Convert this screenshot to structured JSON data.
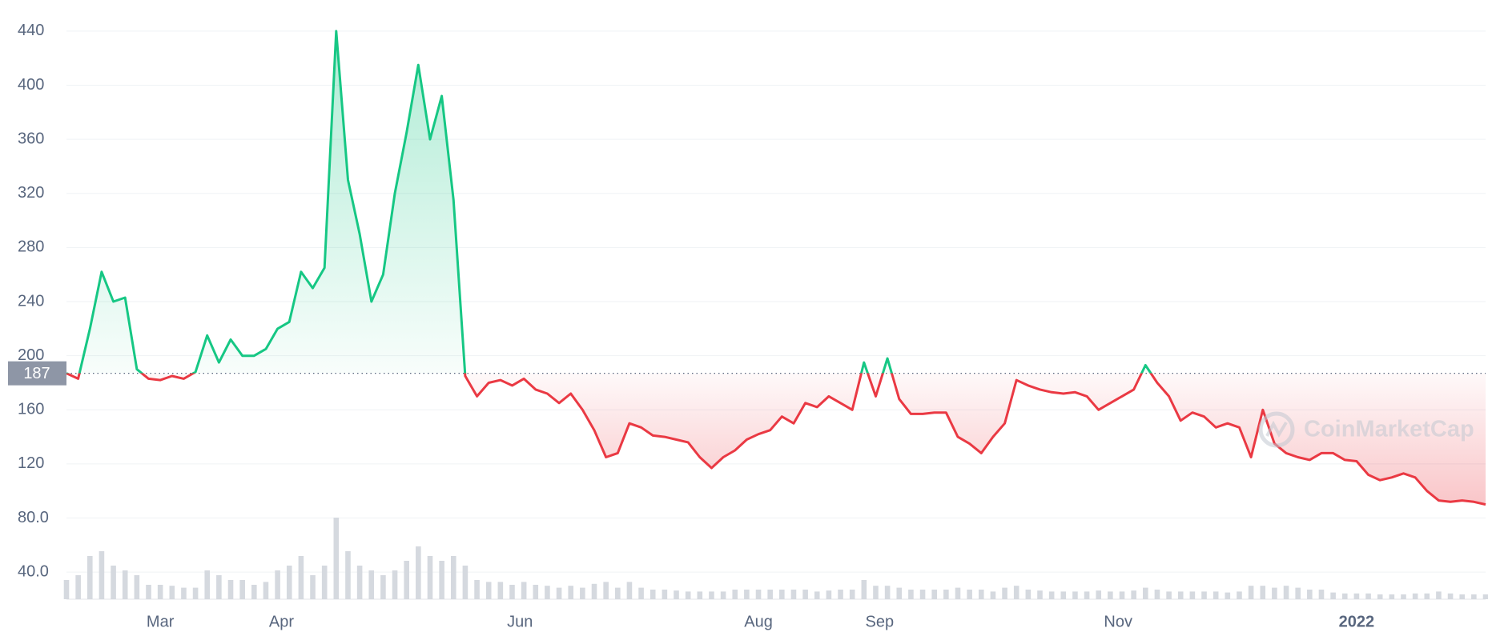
{
  "chart_data": {
    "type": "line",
    "values": [
      187,
      183,
      220,
      262,
      240,
      243,
      190,
      183,
      182,
      185,
      183,
      188,
      215,
      195,
      212,
      200,
      200,
      205,
      220,
      225,
      262,
      250,
      265,
      440,
      330,
      290,
      240,
      260,
      320,
      365,
      415,
      360,
      392,
      315,
      185,
      170,
      180,
      182,
      178,
      183,
      175,
      172,
      165,
      172,
      160,
      145,
      125,
      128,
      150,
      147,
      141,
      140,
      138,
      136,
      125,
      117,
      125,
      130,
      138,
      142,
      145,
      155,
      150,
      165,
      162,
      170,
      165,
      160,
      195,
      170,
      198,
      168,
      157,
      157,
      158,
      158,
      140,
      135,
      128,
      140,
      150,
      182,
      178,
      175,
      173,
      172,
      173,
      170,
      160,
      165,
      170,
      175,
      193,
      180,
      170,
      152,
      158,
      155,
      147,
      150,
      147,
      125,
      160,
      135,
      128,
      125,
      123,
      128,
      128,
      123,
      122,
      112,
      108,
      110,
      113,
      110,
      100,
      93,
      92,
      93,
      92,
      90
    ],
    "volume": [
      20,
      25,
      45,
      50,
      35,
      30,
      25,
      15,
      15,
      14,
      12,
      12,
      30,
      25,
      20,
      20,
      15,
      18,
      30,
      35,
      45,
      25,
      35,
      85,
      50,
      35,
      30,
      25,
      30,
      40,
      55,
      45,
      40,
      45,
      35,
      20,
      18,
      18,
      15,
      18,
      15,
      14,
      12,
      14,
      12,
      16,
      18,
      12,
      18,
      12,
      10,
      10,
      9,
      8,
      8,
      8,
      8,
      10,
      10,
      10,
      10,
      10,
      10,
      10,
      8,
      9,
      10,
      10,
      20,
      14,
      14,
      12,
      10,
      10,
      10,
      10,
      12,
      10,
      10,
      8,
      12,
      14,
      10,
      9,
      8,
      8,
      8,
      8,
      9,
      8,
      8,
      9,
      12,
      10,
      8,
      8,
      8,
      8,
      8,
      7,
      8,
      14,
      14,
      12,
      14,
      12,
      10,
      10,
      7,
      6,
      6,
      6,
      5,
      5,
      5,
      6,
      6,
      8,
      6,
      5,
      5,
      5
    ],
    "volume_lim": [
      0,
      100
    ],
    "baseline": 187,
    "up_color": "#16c784",
    "down_color": "#ea3943",
    "volume_color": "#d5d9df",
    "grid": true,
    "xlim": [
      0,
      121
    ],
    "xticks": [
      {
        "value": 8,
        "label": "Mar"
      },
      {
        "value": 18.33,
        "label": "Apr"
      },
      {
        "value": 38.67,
        "label": "Jun"
      },
      {
        "value": 59,
        "label": "Aug"
      },
      {
        "value": 69.33,
        "label": "Sep"
      },
      {
        "value": 89.67,
        "label": "Nov"
      },
      {
        "value": 110,
        "label": "2022"
      }
    ],
    "ylim": [
      20,
      463
    ],
    "yticks": [
      {
        "value": 40,
        "label": "40.0"
      },
      {
        "value": 80,
        "label": "80.0"
      },
      120,
      160,
      200,
      240,
      280,
      320,
      360,
      400,
      440
    ],
    "watermark": "CoinMarketCap"
  }
}
